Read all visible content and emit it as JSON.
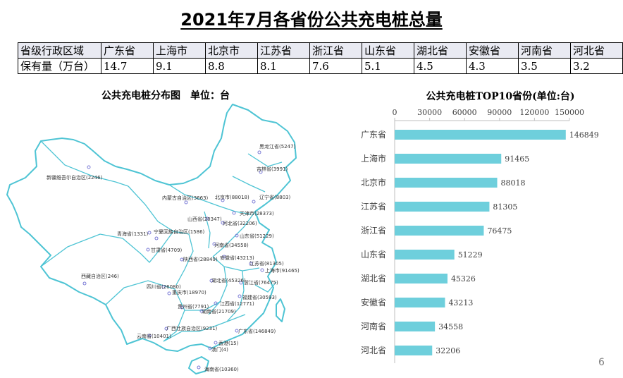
{
  "title": "2021年7月各省份公共充电桩总量",
  "table": {
    "row_header": "省级行政区域",
    "row_label": "保有量（万台）",
    "columns": [
      "广东省",
      "上海市",
      "北京市",
      "江苏省",
      "浙江省",
      "山东省",
      "湖北省",
      "安徽省",
      "河南省",
      "河北省"
    ],
    "values": [
      "14.7",
      "9.1",
      "8.8",
      "8.1",
      "7.6",
      "5.1",
      "4.5",
      "4.3",
      "3.5",
      "3.2"
    ]
  },
  "map": {
    "title": "公共充电桩分布图　单位：台",
    "labels": [
      "黑龙江省(5247)",
      "吉林省(3991)",
      "新疆维吾尔自治区(2246)",
      "内蒙古自治区(3663)",
      "北京市(88018)",
      "辽宁省(8803)",
      "天津市(28373)",
      "山西省(20347)",
      "河北省(32206)",
      "青海省(1331)",
      "宁夏回族自治区(1586)",
      "山东省(51229)",
      "甘肃省(4709)",
      "河南省(34558)",
      "陕西省(28849)",
      "安徽省(43213)",
      "江苏省(81305)",
      "上海市(91465)",
      "西藏自治区(246)",
      "湖北省(45326)",
      "浙江省(76475)",
      "四川省(26080)",
      "重庆市(18970)",
      "福建省(30593)",
      "贵州省(7791)",
      "江西省(12771)",
      "湖南省(21709)",
      "广西壮族自治区(9231)",
      "广东省(146849)",
      "云南省(10401)",
      "香港(15)",
      "澳门(4)",
      "海南省(10360)"
    ]
  },
  "chart_data": {
    "type": "bar",
    "orientation": "horizontal",
    "title": "公共充电桩TOP10省份(单位:台)",
    "categories": [
      "广东省",
      "上海市",
      "北京市",
      "江苏省",
      "浙江省",
      "山东省",
      "湖北省",
      "安徽省",
      "河南省",
      "河北省"
    ],
    "values": [
      146849,
      91465,
      88018,
      81305,
      76475,
      51229,
      45326,
      43213,
      34558,
      32206
    ],
    "xlim": [
      0,
      150000
    ],
    "xticks": [
      0,
      30000,
      60000,
      90000,
      120000,
      150000
    ],
    "axis_position": "top",
    "data_labels": true,
    "bar_color": "#6ecfdc"
  },
  "page_number": "6"
}
